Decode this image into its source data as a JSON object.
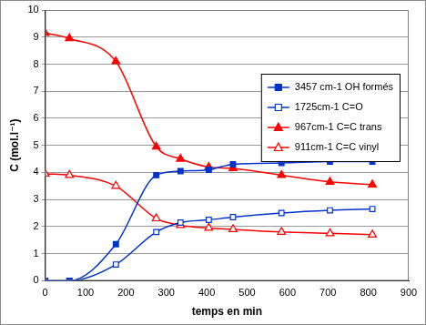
{
  "chart_data": {
    "type": "line",
    "x_label": "temps en min",
    "y_label": "C (mol.l⁻¹)",
    "x": [
      0,
      60,
      175,
      275,
      335,
      405,
      465,
      585,
      705,
      810
    ],
    "series": [
      {
        "name": "3457 cm-1 OH formés",
        "color": "#0033cc",
        "marker": "square",
        "values": [
          0,
          0,
          1.35,
          3.9,
          4.05,
          4.1,
          4.3,
          4.35,
          4.4,
          4.4
        ]
      },
      {
        "name": "1725cm-1 C=O",
        "color": "#0033cc",
        "marker": "square-open",
        "values": [
          0,
          0,
          0.6,
          1.8,
          2.15,
          2.25,
          2.35,
          2.5,
          2.6,
          2.65
        ]
      },
      {
        "name": "967cm-1 C=C trans",
        "color": "#ff0000",
        "marker": "triangle",
        "values": [
          9.15,
          8.95,
          8.1,
          4.95,
          4.5,
          4.2,
          4.15,
          3.9,
          3.65,
          3.55
        ]
      },
      {
        "name": "911cm-1 C=C vinyl",
        "color": "#ff0000",
        "marker": "triangle-open",
        "values": [
          3.95,
          3.9,
          3.5,
          2.3,
          2.05,
          1.95,
          1.9,
          1.8,
          1.75,
          1.7
        ]
      }
    ],
    "xlim": [
      0,
      900
    ],
    "xticks": [
      0,
      100,
      200,
      300,
      400,
      500,
      600,
      700,
      800,
      900
    ],
    "ylim": [
      0,
      10
    ],
    "yticks": [
      0,
      1,
      2,
      3,
      4,
      5,
      6,
      7,
      8,
      9,
      10
    ],
    "grid": true,
    "legend": "upper right"
  }
}
